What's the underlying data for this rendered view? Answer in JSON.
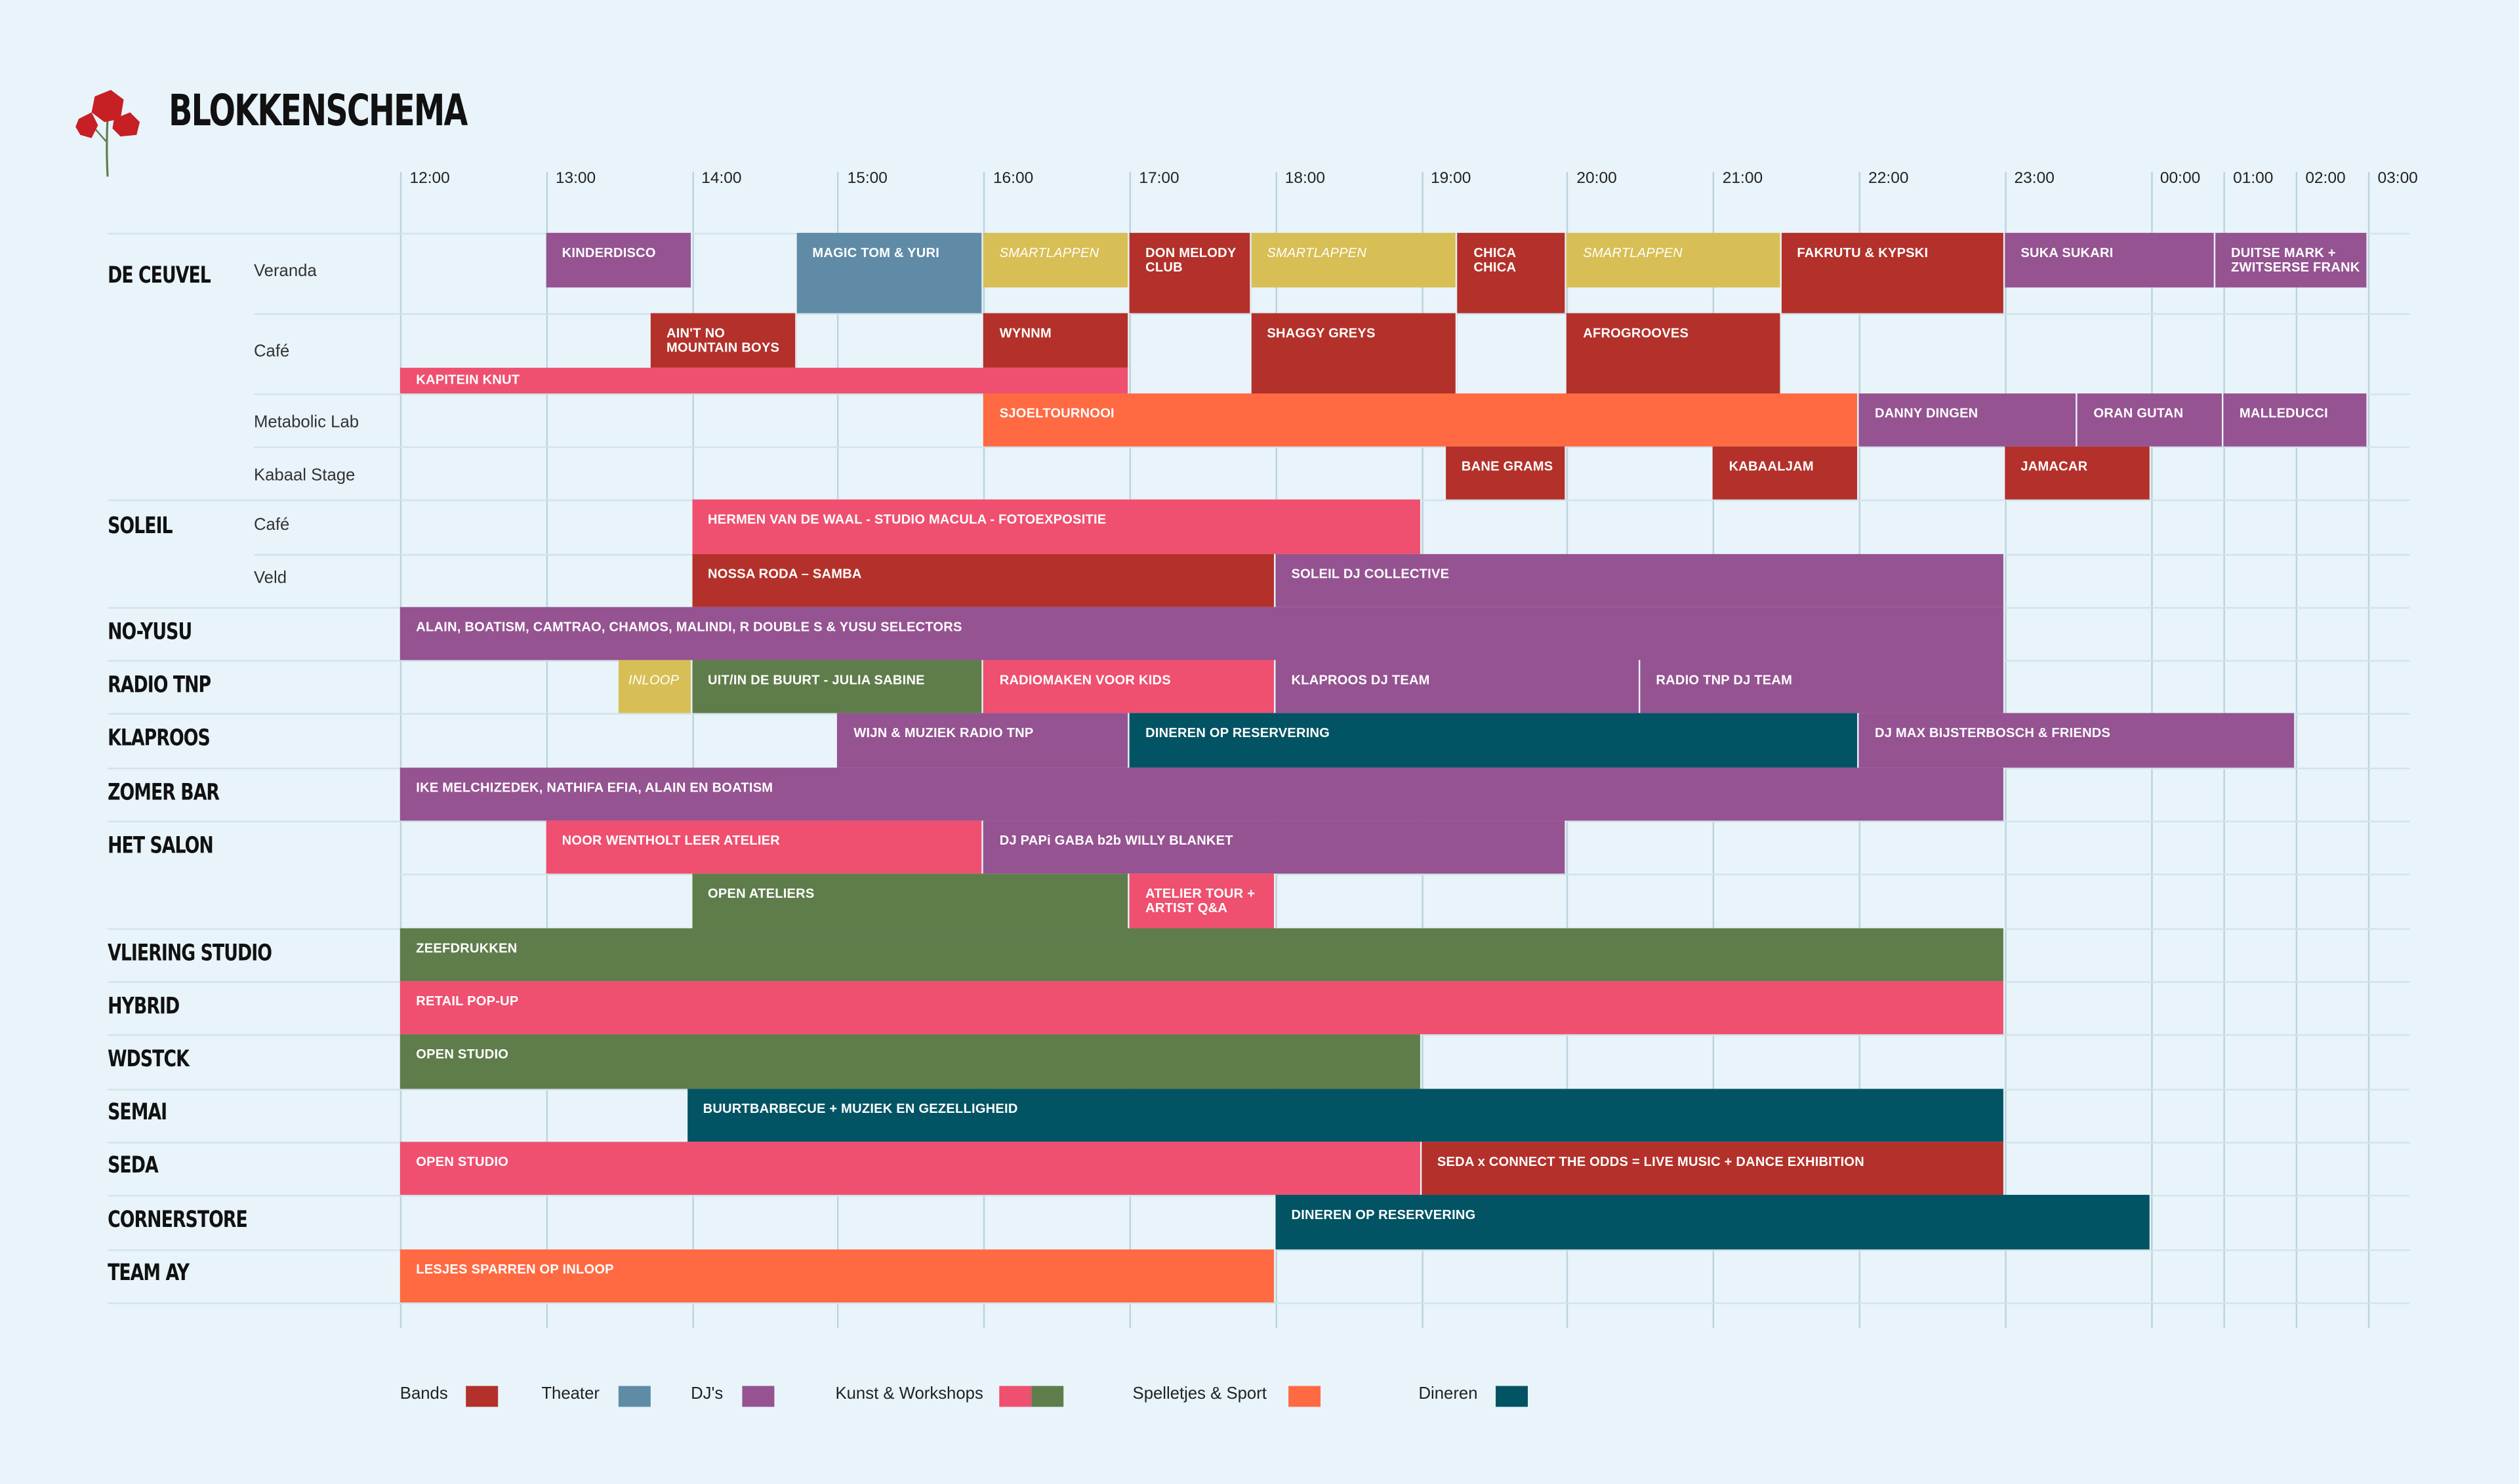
{
  "title": "BLOKKENSCHEMA",
  "timeline": [
    "12:00",
    "13:00",
    "14:00",
    "15:00",
    "16:00",
    "17:00",
    "18:00",
    "19:00",
    "20:00",
    "21:00",
    "22:00",
    "23:00",
    "00:00",
    "01:00",
    "02:00",
    "03:00"
  ],
  "colors": {
    "bands": "#b3312a",
    "theater": "#5f8ba6",
    "djs": "#955391",
    "kunst": "#ef506f",
    "workshops": "#5f7d4b",
    "spelletjes": "#ff6a42",
    "dineren": "#025464",
    "smartlappen": "#d8bf55"
  },
  "venues": [
    {
      "name": "DE CEUVEL"
    },
    {
      "name": "SOLEIL"
    },
    {
      "name": "NO-YUSU"
    },
    {
      "name": "RADIO TNP"
    },
    {
      "name": "KLAPROOS"
    },
    {
      "name": "ZOMER BAR"
    },
    {
      "name": "HET SALON"
    },
    {
      "name": "VLIERING STUDIO"
    },
    {
      "name": "HYBRID"
    },
    {
      "name": "WDSTCK"
    },
    {
      "name": "SEMAI"
    },
    {
      "name": "SEDA"
    },
    {
      "name": "CORNERSTORE"
    },
    {
      "name": "TEAM AY"
    }
  ],
  "stages": [
    {
      "name": "Veranda"
    },
    {
      "name": "Café"
    },
    {
      "name": "Metabolic Lab"
    },
    {
      "name": "Kabaal Stage"
    },
    {
      "name": "Café"
    },
    {
      "name": "Veld"
    }
  ],
  "blocks": [
    {
      "label": "KINDERDISCO",
      "start": "13:00",
      "end": "14:00",
      "cat": "djs"
    },
    {
      "label": "MAGIC TOM & YURI",
      "start": "14:43",
      "end": "16:00",
      "cat": "theater"
    },
    {
      "label": "SMARTLAPPEN",
      "start": "16:00",
      "end": "17:00",
      "cat": "smartlappen"
    },
    {
      "label": "DON MELODY\nCLUB",
      "start": "17:00",
      "end": "17:50",
      "cat": "bands"
    },
    {
      "label": "SMARTLAPPEN",
      "start": "17:50",
      "end": "19:15",
      "cat": "smartlappen"
    },
    {
      "label": "CHICA\nCHICA",
      "start": "19:15",
      "end": "20:00",
      "cat": "bands"
    },
    {
      "label": "SMARTLAPPEN",
      "start": "20:00",
      "end": "21:28",
      "cat": "smartlappen"
    },
    {
      "label": "FAKRUTU & KYPSKI",
      "start": "21:28",
      "end": "23:00",
      "cat": "bands"
    },
    {
      "label": "SUKA SUKARI",
      "start": "23:00",
      "end": "00:53",
      "cat": "djs"
    },
    {
      "label": "DUITSE MARK +\nZWITSERSE FRANK",
      "start": "00:53",
      "end": "03:00",
      "cat": "djs"
    },
    {
      "label": "AIN'T NO\nMOUNTAIN BOYS",
      "start": "13:43",
      "end": "14:43",
      "cat": "bands"
    },
    {
      "label": "WYNNM",
      "start": "16:00",
      "end": "17:00",
      "cat": "bands"
    },
    {
      "label": "KAPITEIN KNUT",
      "start": "12:00",
      "end": "17:00",
      "cat": "kunst"
    },
    {
      "label": "SHAGGY GREYS",
      "start": "17:50",
      "end": "19:15",
      "cat": "bands"
    },
    {
      "label": "AFROGROOVES",
      "start": "20:00",
      "end": "21:28",
      "cat": "bands"
    },
    {
      "label": "SJOELTOURNOOI",
      "start": "16:00",
      "end": "22:00",
      "cat": "spelletjes"
    },
    {
      "label": "DANNY DINGEN",
      "start": "22:00",
      "end": "23:30",
      "cat": "djs"
    },
    {
      "label": "ORAN GUTAN",
      "start": "23:30",
      "end": "01:00",
      "cat": "djs"
    },
    {
      "label": "MALLEDUCCI",
      "start": "01:00",
      "end": "03:00",
      "cat": "djs"
    },
    {
      "label": "BANE GRAMS",
      "start": "19:10",
      "end": "20:00",
      "cat": "bands"
    },
    {
      "label": "KABAALJAM",
      "start": "21:00",
      "end": "22:00",
      "cat": "bands"
    },
    {
      "label": "JAMACAR",
      "start": "23:00",
      "end": "00:00",
      "cat": "bands"
    },
    {
      "label": "HERMEN VAN DE WAAL - STUDIO MACULA - FOTOEXPOSITIE",
      "start": "14:00",
      "end": "19:00",
      "cat": "kunst"
    },
    {
      "label": "NOSSA RODA – SAMBA",
      "start": "14:00",
      "end": "18:00",
      "cat": "bands"
    },
    {
      "label": "SOLEIL DJ COLLECTIVE",
      "start": "18:00",
      "end": "23:00",
      "cat": "djs"
    },
    {
      "label": "ALAIN, BOATISM, CAMTRAO, CHAMOS, MALINDI, R DOUBLE S & YUSU SELECTORS",
      "start": "12:00",
      "end": "23:00",
      "cat": "djs"
    },
    {
      "label": "INLOOP",
      "start": "13:30",
      "end": "14:00",
      "cat": "smartlappen"
    },
    {
      "label": "UIT/IN DE BUURT - JULIA SABINE",
      "start": "14:00",
      "end": "16:00",
      "cat": "workshops"
    },
    {
      "label": "RADIOMAKEN VOOR KIDS",
      "start": "16:00",
      "end": "18:00",
      "cat": "kunst"
    },
    {
      "label": "KLAPROOS DJ TEAM",
      "start": "18:00",
      "end": "20:30",
      "cat": "djs"
    },
    {
      "label": "RADIO TNP DJ TEAM",
      "start": "20:30",
      "end": "23:00",
      "cat": "djs"
    },
    {
      "label": "WIJN & MUZIEK RADIO TNP",
      "start": "15:00",
      "end": "17:00",
      "cat": "djs"
    },
    {
      "label": "DINEREN OP RESERVERING",
      "start": "17:00",
      "end": "22:00",
      "cat": "dineren"
    },
    {
      "label": "DJ MAX BIJSTERBOSCH & FRIENDS",
      "start": "22:00",
      "end": "02:00",
      "cat": "djs"
    },
    {
      "label": "IKE MELCHIZEDEK, NATHIFA EFIA, ALAIN EN BOATISM",
      "start": "12:00",
      "end": "23:00",
      "cat": "djs"
    },
    {
      "label": "NOOR WENTHOLT LEER ATELIER",
      "start": "13:00",
      "end": "16:00",
      "cat": "kunst"
    },
    {
      "label": "DJ PAPi GABA b2b WILLY BLANKET",
      "start": "16:00",
      "end": "20:00",
      "cat": "djs"
    },
    {
      "label": "OPEN ATELIERS",
      "start": "14:00",
      "end": "17:00",
      "cat": "workshops"
    },
    {
      "label": "ATELIER TOUR +\nARTIST Q&A",
      "start": "17:00",
      "end": "18:00",
      "cat": "kunst"
    },
    {
      "label": "ZEEFDRUKKEN",
      "start": "12:00",
      "end": "23:00",
      "cat": "workshops"
    },
    {
      "label": "RETAIL POP-UP",
      "start": "12:00",
      "end": "23:00",
      "cat": "kunst"
    },
    {
      "label": "OPEN STUDIO",
      "start": "12:00",
      "end": "19:00",
      "cat": "workshops"
    },
    {
      "label": "BUURTBARBECUE + MUZIEK EN GEZELLIGHEID",
      "start": "13:58",
      "end": "23:00",
      "cat": "dineren"
    },
    {
      "label": "OPEN STUDIO",
      "start": "12:00",
      "end": "19:00",
      "cat": "kunst"
    },
    {
      "label": "SEDA x CONNECT THE ODDS = LIVE MUSIC + DANCE EXHIBITION",
      "start": "19:00",
      "end": "23:00",
      "cat": "bands"
    },
    {
      "label": "DINEREN OP RESERVERING",
      "start": "18:00",
      "end": "00:00",
      "cat": "dineren"
    },
    {
      "label": "LESJES SPARREN OP INLOOP",
      "start": "12:00",
      "end": "18:00",
      "cat": "spelletjes"
    }
  ],
  "legend": [
    {
      "label": "Bands",
      "colors": [
        "#b3312a"
      ]
    },
    {
      "label": "Theater",
      "colors": [
        "#5f8ba6"
      ]
    },
    {
      "label": "DJ's",
      "colors": [
        "#955391"
      ]
    },
    {
      "label": "Kunst & Workshops",
      "colors": [
        "#ef506f",
        "#5f7d4b"
      ]
    },
    {
      "label": "Spelletjes & Sport",
      "colors": [
        "#ff6a42"
      ]
    },
    {
      "label": "Dineren",
      "colors": [
        "#025464"
      ]
    }
  ]
}
